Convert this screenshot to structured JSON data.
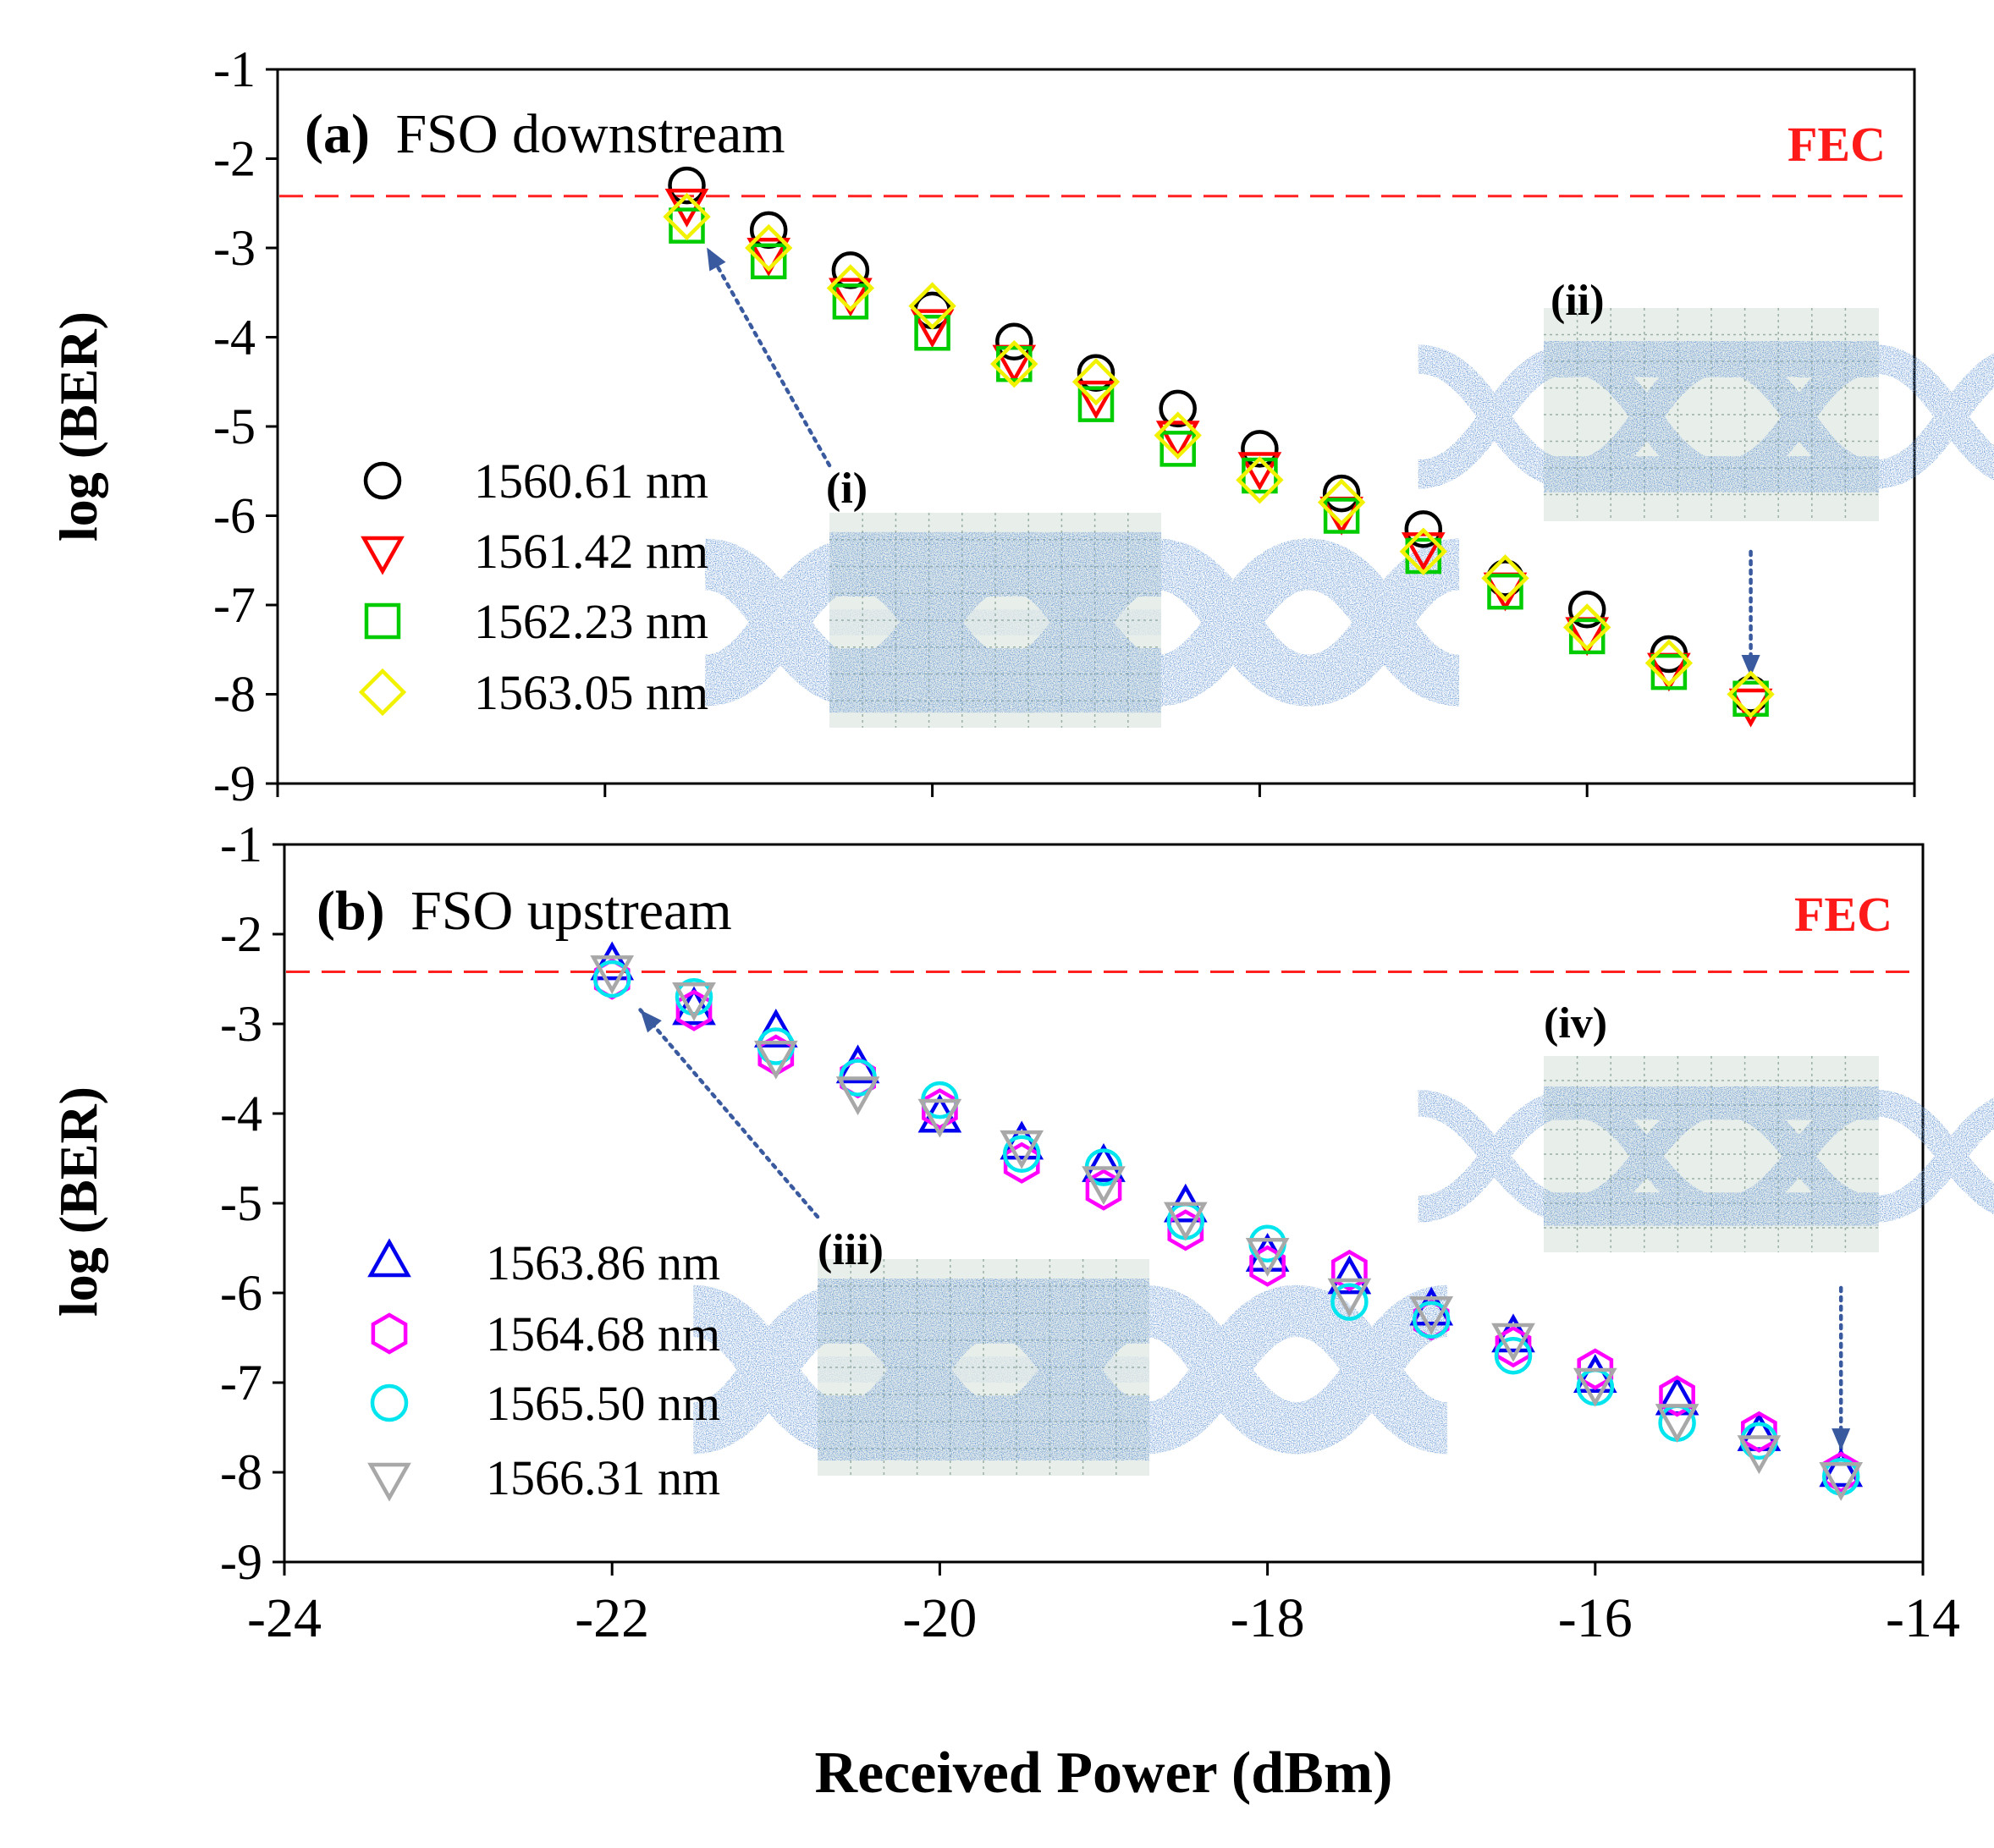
{
  "colors": {
    "fec_line": "#ff2020",
    "fec_label": "#ff1a1a",
    "arrow": "#3a5aa0",
    "eye_trace": "#2f5fb0",
    "eye_bg": "#e8eeea",
    "eye_grid": "#9bb0a4"
  },
  "chart_data": [
    {
      "panel_id": "a",
      "type": "scatter",
      "title_letter": "(a)",
      "title_text": "FSO downstream",
      "xlim": [
        -24,
        -14
      ],
      "ylim": [
        -9,
        -1
      ],
      "ytick_labels": [
        "-1",
        "-2",
        "-3",
        "-4",
        "-5",
        "-6",
        "-7",
        "-8",
        "-9"
      ],
      "ylabel": "log (BER)",
      "fec": {
        "label": "FEC",
        "y": -2.42
      },
      "x": [
        -21.5,
        -21.0,
        -20.5,
        -20.0,
        -19.5,
        -19.0,
        -18.5,
        -18.0,
        -17.5,
        -17.0,
        -16.5,
        -16.0,
        -15.5,
        -15.0
      ],
      "series": [
        {
          "name": "1560.61 nm",
          "marker": "circle",
          "color": "#000000",
          "values": [
            -2.3,
            -2.8,
            -3.25,
            -3.7,
            -4.05,
            -4.4,
            -4.8,
            -5.25,
            -5.75,
            -6.15,
            -6.7,
            -7.05,
            -7.55,
            -8.0
          ]
        },
        {
          "name": "1561.42 nm",
          "marker": "triangle-down",
          "color": "#ff0000",
          "values": [
            -2.5,
            -3.05,
            -3.5,
            -3.85,
            -4.25,
            -4.65,
            -5.1,
            -5.45,
            -5.95,
            -6.35,
            -6.8,
            -7.3,
            -7.7,
            -8.1
          ]
        },
        {
          "name": "1562.23 nm",
          "marker": "square",
          "color": "#00cc00",
          "values": [
            -2.75,
            -3.15,
            -3.6,
            -3.95,
            -4.3,
            -4.75,
            -5.25,
            -5.55,
            -6.0,
            -6.45,
            -6.85,
            -7.35,
            -7.75,
            -8.05
          ]
        },
        {
          "name": "1563.05 nm",
          "marker": "diamond",
          "color": "#f2f200",
          "values": [
            -2.65,
            -3.0,
            -3.45,
            -3.65,
            -4.3,
            -4.5,
            -5.1,
            -5.6,
            -5.85,
            -6.4,
            -6.7,
            -7.25,
            -7.65,
            -8.0
          ]
        }
      ],
      "insets": [
        {
          "label": "(i)",
          "eye_count": 2,
          "arrow_to": [
            -21.45,
            -2.9
          ]
        },
        {
          "label": "(ii)",
          "eye_count": 2,
          "arrow_to": [
            -15.0,
            -7.9
          ]
        }
      ]
    },
    {
      "panel_id": "b",
      "type": "scatter",
      "title_letter": "(b)",
      "title_text": "FSO upstream",
      "xlim": [
        -24,
        -14
      ],
      "ylim": [
        -9,
        -1
      ],
      "xtick_labels": [
        "-24",
        "-22",
        "-20",
        "-18",
        "-16",
        "-14"
      ],
      "ytick_labels": [
        "-1",
        "-2",
        "-3",
        "-4",
        "-5",
        "-6",
        "-7",
        "-8",
        "-9"
      ],
      "ylabel": "log (BER)",
      "xlabel": "Received Power (dBm)",
      "fec": {
        "label": "FEC",
        "y": -2.42
      },
      "x": [
        -22.0,
        -21.5,
        -21.0,
        -20.5,
        -20.0,
        -19.5,
        -19.0,
        -18.5,
        -18.0,
        -17.5,
        -17.0,
        -16.5,
        -16.0,
        -15.5,
        -15.0,
        -14.5
      ],
      "series": [
        {
          "name": "1563.86 nm",
          "marker": "triangle-up",
          "color": "#0000ee",
          "values": [
            -2.35,
            -2.85,
            -3.1,
            -3.5,
            -4.05,
            -4.35,
            -4.6,
            -5.05,
            -5.6,
            -5.85,
            -6.2,
            -6.5,
            -6.95,
            -7.2,
            -7.6,
            -8.0
          ]
        },
        {
          "name": "1564.68 nm",
          "marker": "hexagon",
          "color": "#ff00ff",
          "values": [
            -2.5,
            -2.85,
            -3.35,
            -3.6,
            -3.95,
            -4.55,
            -4.85,
            -5.3,
            -5.7,
            -5.75,
            -6.3,
            -6.6,
            -6.85,
            -7.15,
            -7.55,
            -8.0
          ]
        },
        {
          "name": "1565.50 nm",
          "marker": "circle",
          "color": "#00e5ee",
          "values": [
            -2.5,
            -2.7,
            -3.25,
            -3.6,
            -3.85,
            -4.45,
            -4.6,
            -5.2,
            -5.45,
            -6.1,
            -6.3,
            -6.7,
            -7.05,
            -7.45,
            -7.65,
            -8.05
          ]
        },
        {
          "name": "1566.31 nm",
          "marker": "triangle-down",
          "color": "#a8a8a8",
          "values": [
            -2.4,
            -2.7,
            -3.35,
            -3.75,
            -4.0,
            -4.35,
            -4.75,
            -5.15,
            -5.55,
            -6.0,
            -6.2,
            -6.5,
            -7.0,
            -7.4,
            -7.75,
            -8.05
          ]
        }
      ],
      "insets": [
        {
          "label": "(iii)",
          "eye_count": 2,
          "arrow_to": [
            -21.9,
            -2.75
          ]
        },
        {
          "label": "(iv)",
          "eye_count": 2,
          "arrow_to": [
            -14.5,
            -7.85
          ]
        }
      ]
    }
  ]
}
